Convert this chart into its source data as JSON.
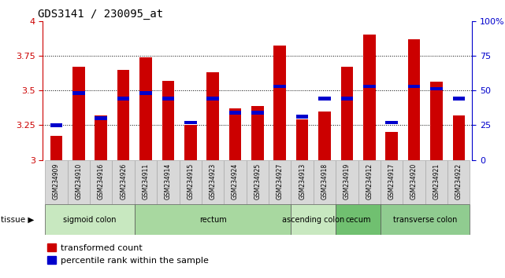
{
  "title": "GDS3141 / 230095_at",
  "samples": [
    "GSM234909",
    "GSM234910",
    "GSM234916",
    "GSM234926",
    "GSM234911",
    "GSM234914",
    "GSM234915",
    "GSM234923",
    "GSM234924",
    "GSM234925",
    "GSM234927",
    "GSM234913",
    "GSM234918",
    "GSM234919",
    "GSM234912",
    "GSM234917",
    "GSM234920",
    "GSM234921",
    "GSM234922"
  ],
  "red_values": [
    3.17,
    3.67,
    3.32,
    3.65,
    3.74,
    3.57,
    3.25,
    3.63,
    3.37,
    3.39,
    3.82,
    3.29,
    3.35,
    3.67,
    3.9,
    3.2,
    3.87,
    3.56,
    3.32
  ],
  "blue_values": [
    3.25,
    3.48,
    3.3,
    3.44,
    3.48,
    3.44,
    3.27,
    3.44,
    3.34,
    3.34,
    3.53,
    3.31,
    3.44,
    3.44,
    3.53,
    3.27,
    3.53,
    3.51,
    3.44
  ],
  "tissue_groups": [
    {
      "label": "sigmoid colon",
      "start": 0,
      "end": 4,
      "color": "#c8e8c0"
    },
    {
      "label": "rectum",
      "start": 4,
      "end": 11,
      "color": "#a8d8a0"
    },
    {
      "label": "ascending colon",
      "start": 11,
      "end": 13,
      "color": "#c8e8c0"
    },
    {
      "label": "cecum",
      "start": 13,
      "end": 15,
      "color": "#70c070"
    },
    {
      "label": "transverse colon",
      "start": 15,
      "end": 19,
      "color": "#90cc90"
    }
  ],
  "ylim": [
    3.0,
    4.0
  ],
  "yticks": [
    3.0,
    3.25,
    3.5,
    3.75,
    4.0
  ],
  "ytick_labels": [
    "3",
    "3.25",
    "3.5",
    "3.75",
    "4"
  ],
  "right_yticks": [
    0,
    25,
    50,
    75,
    100
  ],
  "right_ytick_labels": [
    "0",
    "25",
    "50",
    "75",
    "100%"
  ],
  "right_ylabel_color": "#0000cc",
  "left_axis_color": "#cc0000",
  "bar_color": "#cc0000",
  "blue_marker_color": "#0000cc",
  "bar_width": 0.55,
  "legend_red": "transformed count",
  "legend_blue": "percentile rank within the sample",
  "dotted_line_color": "#000000",
  "base": 3.0,
  "xticklabel_bg": "#d8d8d8"
}
